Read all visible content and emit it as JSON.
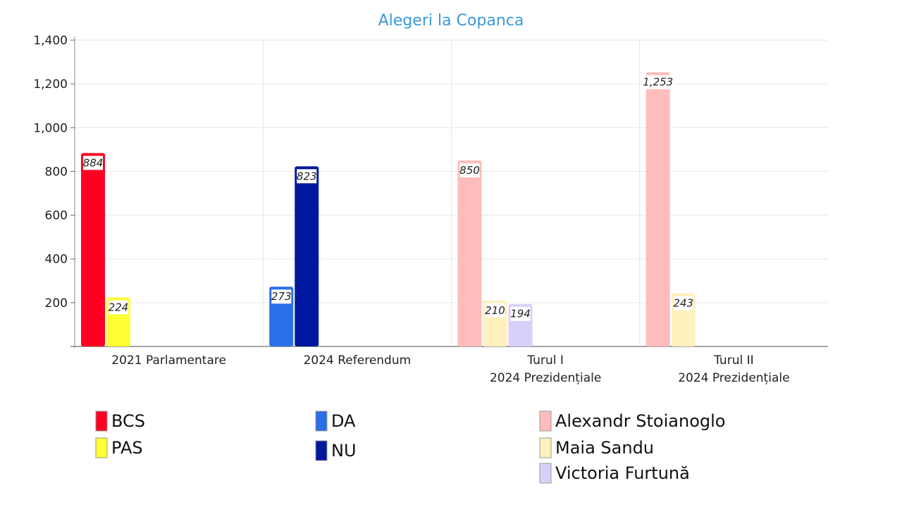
{
  "chart_data": {
    "type": "bar",
    "title": "Alegeri la Copanca",
    "title_color": "#3a9ad9",
    "ylim": [
      0,
      1400
    ],
    "yticks": [
      200,
      400,
      600,
      800,
      1000,
      1200,
      1400
    ],
    "ytick_labels": [
      "200",
      "400",
      "600",
      "800",
      "1,000",
      "1,200",
      "1,400"
    ],
    "grid": true,
    "categories": [
      {
        "lines": [
          "2021 Parlamentare"
        ]
      },
      {
        "lines": [
          "2024 Referendum"
        ]
      },
      {
        "lines": [
          "Turul I",
          "2024 Prezidențiale"
        ]
      },
      {
        "lines": [
          "Turul II",
          "2024 Prezidențiale"
        ]
      }
    ],
    "series": [
      {
        "name": "BCS",
        "color": "#ff0022",
        "values": [
          884,
          null,
          null,
          null
        ]
      },
      {
        "name": "PAS",
        "color": "#ffff33",
        "values": [
          224,
          null,
          null,
          null
        ]
      },
      {
        "name": "DA",
        "color": "#2b6fe8",
        "values": [
          null,
          273,
          null,
          null
        ]
      },
      {
        "name": "NU",
        "color": "#0018a0",
        "values": [
          null,
          823,
          null,
          null
        ]
      },
      {
        "name": "Alexandr Stoianoglo",
        "color": "#ffbcbc",
        "values": [
          null,
          null,
          850,
          1253
        ]
      },
      {
        "name": "Maia Sandu",
        "color": "#fff1bd",
        "values": [
          null,
          null,
          210,
          243
        ]
      },
      {
        "name": "Victoria Furtună",
        "color": "#d8d0fa",
        "values": [
          null,
          null,
          194,
          null
        ]
      }
    ],
    "data_labels": {
      "BCS": [
        "884"
      ],
      "PAS": [
        "224"
      ],
      "DA": [
        "273"
      ],
      "NU": [
        "823"
      ],
      "Alexandr Stoianoglo": [
        "850",
        "1,253"
      ],
      "Maia Sandu": [
        "210",
        "243"
      ],
      "Victoria Furtună": [
        "194"
      ]
    },
    "legend": [
      [
        "BCS",
        "PAS"
      ],
      [
        "DA",
        "NU"
      ],
      [
        "Alexandr Stoianoglo",
        "Maia Sandu",
        "Victoria Furtună"
      ]
    ]
  }
}
